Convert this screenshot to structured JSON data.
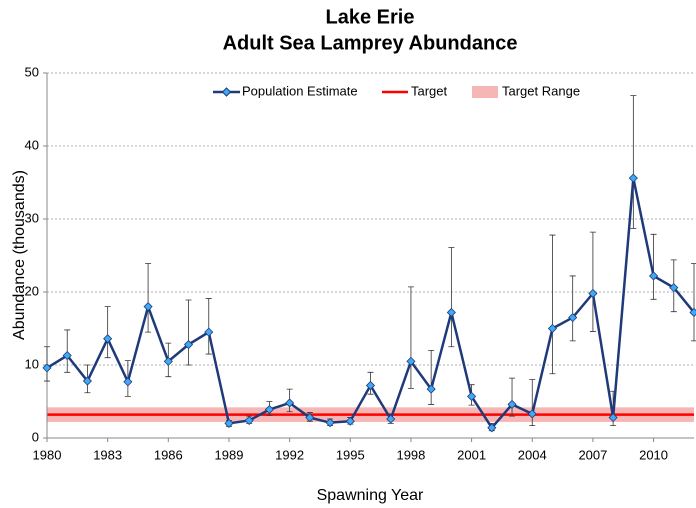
{
  "chart_data": {
    "type": "line",
    "title": [
      "Lake Erie",
      "Adult Sea Lamprey Abundance"
    ],
    "x_label": "Spawning Year",
    "y_label": "Abundance (thousands)",
    "x": [
      1980,
      1981,
      1982,
      1983,
      1984,
      1985,
      1986,
      1987,
      1988,
      1989,
      1990,
      1991,
      1992,
      1993,
      1994,
      1995,
      1996,
      1997,
      1998,
      1999,
      2000,
      2001,
      2002,
      2003,
      2004,
      2005,
      2006,
      2007,
      2008,
      2009,
      2010,
      2011,
      2012
    ],
    "series": [
      {
        "name": "Population Estimate",
        "color": "#1f3a7a",
        "marker_color": "#3fa9f5",
        "values": [
          9.6,
          11.3,
          7.8,
          13.6,
          7.7,
          18.0,
          10.5,
          12.8,
          14.5,
          2.0,
          2.4,
          3.9,
          4.8,
          2.8,
          2.1,
          2.3,
          7.2,
          2.6,
          10.5,
          6.7,
          17.2,
          5.7,
          1.4,
          4.6,
          3.3,
          15.0,
          16.5,
          19.8,
          2.8,
          35.6,
          22.2,
          20.6,
          17.2
        ],
        "low": [
          7.8,
          9.0,
          6.2,
          11.0,
          5.7,
          14.5,
          8.4,
          10.0,
          11.5,
          1.6,
          2.0,
          3.1,
          3.6,
          2.3,
          1.7,
          1.9,
          6.0,
          2.0,
          6.8,
          4.6,
          12.5,
          4.5,
          1.0,
          3.0,
          1.7,
          8.8,
          13.3,
          14.6,
          1.7,
          28.7,
          19.0,
          17.3,
          13.3
        ],
        "high": [
          12.5,
          14.8,
          10.0,
          18.0,
          10.6,
          23.9,
          13.0,
          18.9,
          19.1,
          2.4,
          3.0,
          5.0,
          6.7,
          3.5,
          2.6,
          2.8,
          9.0,
          3.3,
          20.7,
          12.0,
          26.1,
          7.3,
          2.0,
          8.2,
          8.0,
          27.8,
          22.2,
          28.2,
          6.4,
          46.9,
          27.9,
          24.4,
          23.9
        ]
      }
    ],
    "target": {
      "name": "Target",
      "value": 3.2,
      "color": "#ff0000"
    },
    "target_range": {
      "name": "Target Range",
      "low": 2.2,
      "high": 4.2,
      "color": "#f7b6b6"
    },
    "xlim": [
      1980,
      2012
    ],
    "xticks": [
      1980,
      1983,
      1986,
      1989,
      1992,
      1995,
      1998,
      2001,
      2004,
      2007,
      2010
    ],
    "ylim": [
      0,
      50
    ],
    "yticks": [
      0,
      10,
      20,
      30,
      40,
      50
    ],
    "grid": true
  }
}
